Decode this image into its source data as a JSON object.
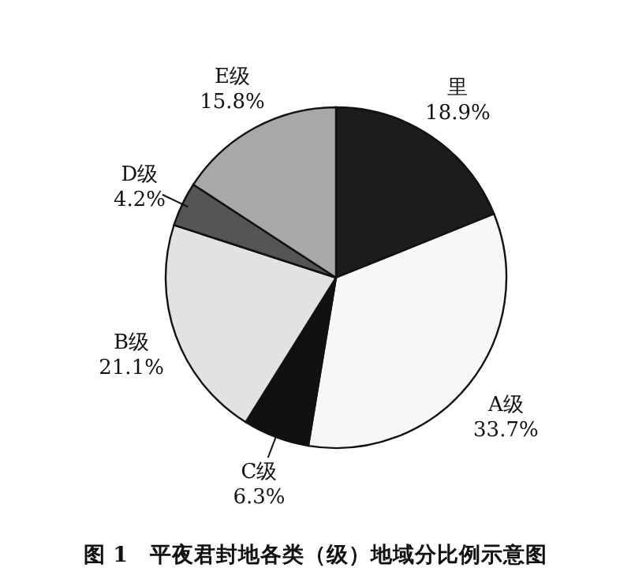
{
  "chart_data": {
    "type": "pie",
    "title": "图 1　平夜君封地各类（级）地域分比例示意图",
    "categories": [
      "里",
      "A级",
      "C级",
      "B级",
      "D级",
      "E级"
    ],
    "values": [
      18.9,
      33.7,
      6.3,
      21.1,
      4.2,
      15.8
    ],
    "value_labels": [
      "18.9%",
      "33.7%",
      "6.3%",
      "21.1%",
      "4.2%",
      "15.8%"
    ],
    "colors": [
      "#1c1c1c",
      "#f7f7f7",
      "#111111",
      "#e2e2e2",
      "#555555",
      "#a8a8a8"
    ]
  }
}
